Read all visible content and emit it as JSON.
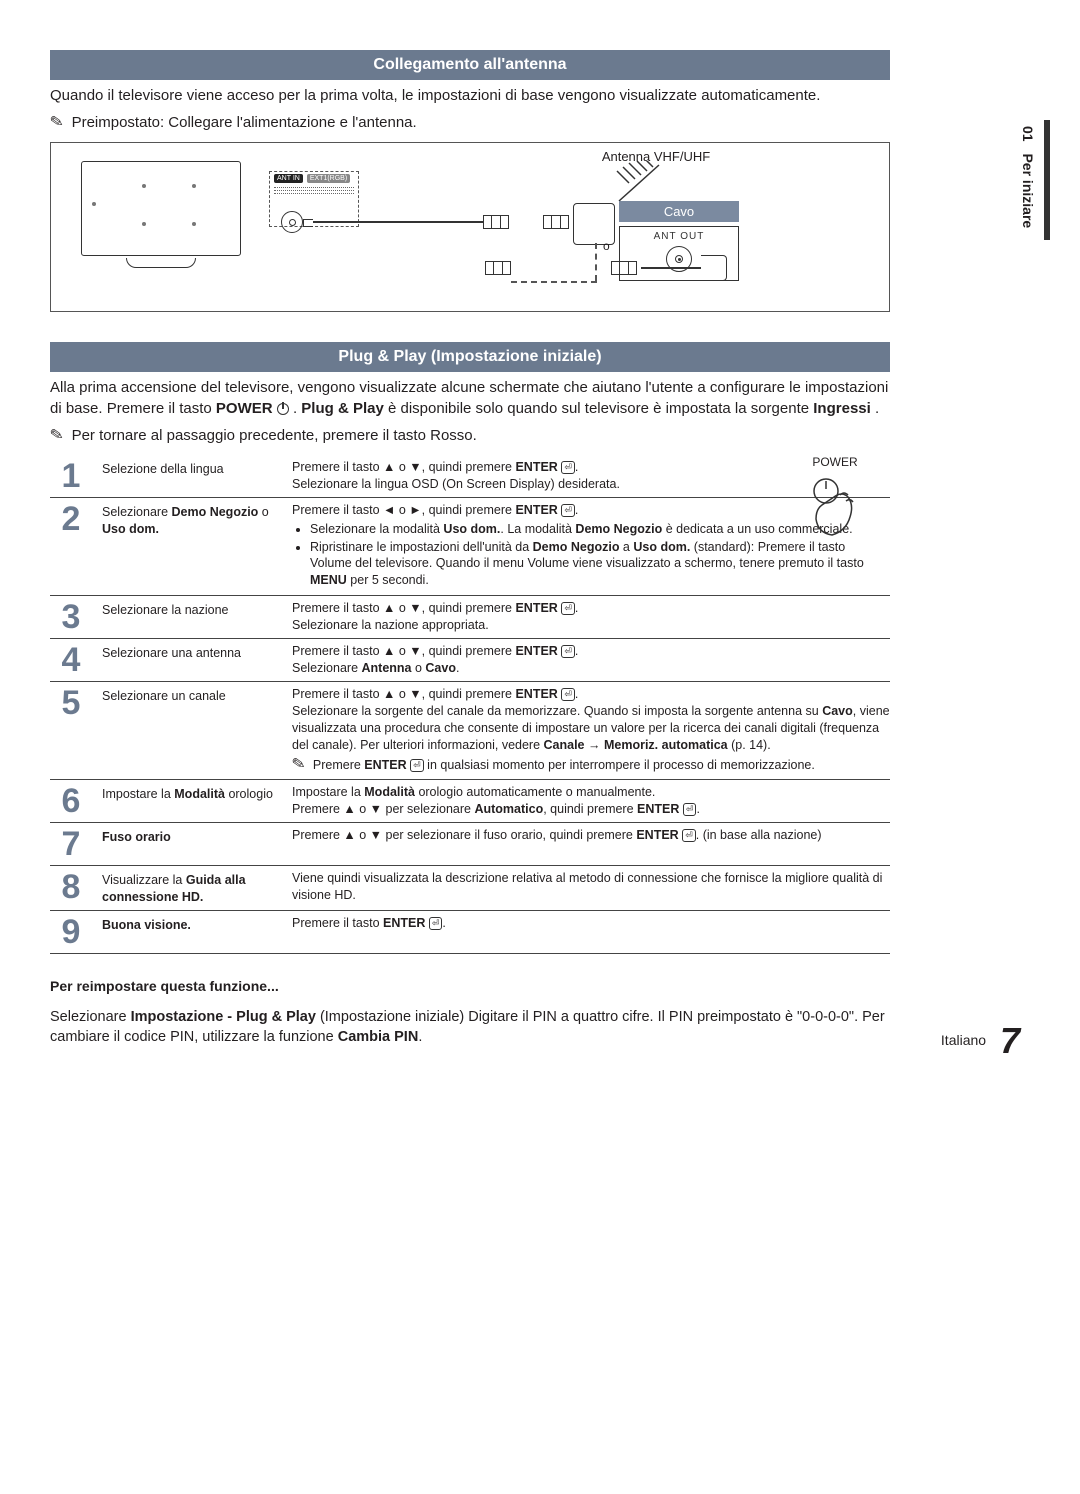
{
  "side": {
    "num": "01",
    "label": "Per iniziare"
  },
  "section1": {
    "title": "Collegamento all'antenna",
    "intro": "Quando il televisore viene acceso per la prima volta, le impostazioni di base vengono visualizzate automaticamente.",
    "note": "Preimpostato: Collegare l'alimentazione e l'antenna."
  },
  "diagram": {
    "ant_label": "Antenna VHF/UHF",
    "port_ant": "ANT IN",
    "port_ext": "EXT1(RGB)",
    "cavo": "Cavo",
    "ant_out": "ANT OUT",
    "colors": {
      "bar": "#6b7a8f",
      "cavo_bg": "#7b8aa0"
    }
  },
  "section2": {
    "title": "Plug & Play (Impostazione iniziale)",
    "p1_a": "Alla prima accensione del televisore, vengono visualizzate alcune schermate che aiutano l'utente a configurare le impostazioni di base. Premere il tasto ",
    "p1_power": "POWER",
    "p1_b": ". ",
    "p1_pp": "Plug & Play",
    "p1_c": " è disponibile solo quando sul televisore è impostata la sorgente ",
    "p1_src": "Ingressi",
    "p1_d": ".",
    "note": "Per tornare al passaggio precedente, premere il tasto Rosso.",
    "power_label": "POWER"
  },
  "steps": [
    {
      "n": "1",
      "title_plain": "Selezione della lingua",
      "body": "Premere il tasto ▲ o ▼, quindi premere ENTER ⏎.<br>Selezionare la lingua OSD (On Screen Display) desiderata."
    },
    {
      "n": "2",
      "title_html": "Selezionare <b>Demo Negozio</b> o <b>Uso dom.</b>",
      "body": "Premere il tasto ◄ o ►, quindi premere ENTER ⏎.<ul><li>Selezionare la modalità <b>Uso dom.</b>. La modalità <b>Demo Negozio</b> è dedicata a un uso commerciale.</li><li>Ripristinare le impostazioni dell'unità da <b>Demo Negozio</b> a <b>Uso dom.</b> (standard): Premere il tasto Volume del televisore. Quando il menu Volume viene visualizzato a schermo, tenere premuto il tasto <b>MENU</b> per 5 secondi.</li></ul>"
    },
    {
      "n": "3",
      "title_plain": "Selezionare la nazione",
      "body": "Premere il tasto ▲ o ▼, quindi premere ENTER ⏎.<br>Selezionare la nazione appropriata."
    },
    {
      "n": "4",
      "title_plain": "Selezionare una antenna",
      "body": "Premere il tasto ▲ o ▼, quindi premere ENTER ⏎.<br>Selezionare <b>Antenna</b> o <b>Cavo</b>."
    },
    {
      "n": "5",
      "title_plain": "Selezionare un canale",
      "body": "Premere il tasto ▲ o ▼, quindi premere ENTER ⏎.<br>Selezionare la sorgente del canale da memorizzare. Quando si imposta la sorgente antenna su <b>Cavo</b>, viene visualizzata una procedura che consente di impostare un valore per la ricerca dei canali digitali (frequenza del canale). Per ulteriori informazioni, vedere <b>Canale</b> → <b>Memoriz. automatica</b> (p. 14).<br><span class='note-icon'>✎</span> Premere ENTER ⏎ in qualsiasi momento per interrompere il processo di memorizzazione."
    },
    {
      "n": "6",
      "title_html": "Impostare la <b>Modalità</b> orologio",
      "body": "Impostare la <b>Modalità</b> orologio automaticamente o manualmente.<br>Premere ▲ o ▼ per selezionare <b>Automatico</b>, quindi premere ENTER ⏎."
    },
    {
      "n": "7",
      "title_html": "<b>Fuso orario</b>",
      "body": "Premere ▲ o ▼ per selezionare il fuso orario, quindi premere ENTER ⏎. (in base alla nazione)"
    },
    {
      "n": "8",
      "title_html": "Visualizzare la <b>Guida alla connessione HD.</b>",
      "body": "Viene quindi visualizzata la descrizione relativa al metodo di connessione che fornisce la migliore qualità di visione HD."
    },
    {
      "n": "9",
      "title_html": "<b>Buona visione.</b>",
      "body": "Premere il tasto ENTER ⏎."
    }
  ],
  "reset": {
    "head": "Per reimpostare questa funzione...",
    "body_html": "Selezionare <b>Impostazione - Plug & Play</b> (Impostazione iniziale) Digitare il PIN a quattro cifre. Il PIN preimpostato è \"0-0-0-0\". Per cambiare il codice PIN, utilizzare la funzione <b>Cambia PIN</b>."
  },
  "footer": {
    "lang": "Italiano",
    "page": "7"
  }
}
